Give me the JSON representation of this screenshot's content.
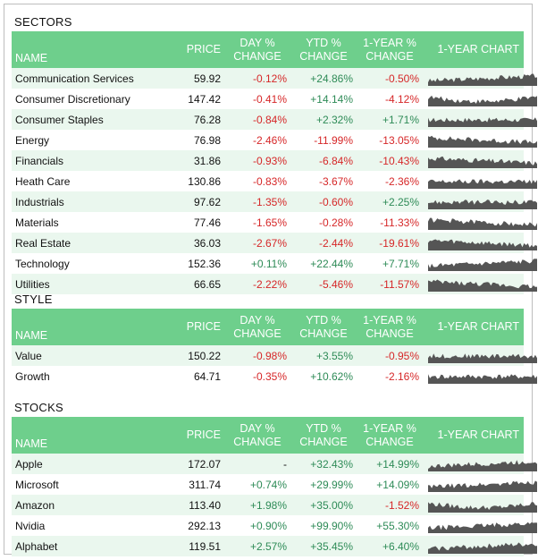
{
  "headers": {
    "name": "NAME",
    "price": "PRICE",
    "day_l1": "DAY %",
    "day_l2": "CHANGE",
    "ytd_l1": "YTD %",
    "ytd_l2": "CHANGE",
    "yr_l1": "1-YEAR %",
    "yr_l2": "CHANGE",
    "chart": "1-YEAR CHART"
  },
  "colors": {
    "header_bg": "#6ecf8c",
    "positive": "#2e8b57",
    "negative": "#d62728",
    "sparkline": "#555555"
  },
  "sections": [
    {
      "title": "SECTORS",
      "rows": [
        {
          "name": "Communication Services",
          "price": "59.92",
          "day": "-0.12%",
          "ytd": "+24.86%",
          "yr": "-0.50%",
          "spark_trend": "up"
        },
        {
          "name": "Consumer Discretionary",
          "price": "147.42",
          "day": "-0.41%",
          "ytd": "+14.14%",
          "yr": "-4.12%",
          "spark_trend": "down-up"
        },
        {
          "name": "Consumer Staples",
          "price": "76.28",
          "day": "-0.84%",
          "ytd": "+2.32%",
          "yr": "+1.71%",
          "spark_trend": "flat"
        },
        {
          "name": "Energy",
          "price": "76.98",
          "day": "-2.46%",
          "ytd": "-11.99%",
          "yr": "-13.05%",
          "spark_trend": "down"
        },
        {
          "name": "Financials",
          "price": "31.86",
          "day": "-0.93%",
          "ytd": "-6.84%",
          "yr": "-10.43%",
          "spark_trend": "down"
        },
        {
          "name": "Heath Care",
          "price": "130.86",
          "day": "-0.83%",
          "ytd": "-3.67%",
          "yr": "-2.36%",
          "spark_trend": "flat"
        },
        {
          "name": "Industrials",
          "price": "97.62",
          "day": "-1.35%",
          "ytd": "-0.60%",
          "yr": "+2.25%",
          "spark_trend": "flat"
        },
        {
          "name": "Materials",
          "price": "77.46",
          "day": "-1.65%",
          "ytd": "-0.28%",
          "yr": "-11.33%",
          "spark_trend": "down"
        },
        {
          "name": "Real Estate",
          "price": "36.03",
          "day": "-2.67%",
          "ytd": "-2.44%",
          "yr": "-19.61%",
          "spark_trend": "down"
        },
        {
          "name": "Technology",
          "price": "152.36",
          "day": "+0.11%",
          "ytd": "+22.44%",
          "yr": "+7.71%",
          "spark_trend": "up"
        },
        {
          "name": "Utilities",
          "price": "66.65",
          "day": "-2.22%",
          "ytd": "-5.46%",
          "yr": "-11.57%",
          "spark_trend": "down"
        }
      ]
    },
    {
      "title": "STYLE",
      "rows": [
        {
          "name": "Value",
          "price": "150.22",
          "day": "-0.98%",
          "ytd": "+3.55%",
          "yr": "-0.95%",
          "spark_trend": "flat"
        },
        {
          "name": "Growth",
          "price": "64.71",
          "day": "-0.35%",
          "ytd": "+10.62%",
          "yr": "-2.16%",
          "spark_trend": "flat"
        }
      ]
    },
    {
      "title": "STOCKS",
      "rows": [
        {
          "name": "Apple",
          "price": "172.07",
          "day": "-",
          "ytd": "+32.43%",
          "yr": "+14.99%",
          "spark_trend": "up"
        },
        {
          "name": "Microsoft",
          "price": "311.74",
          "day": "+0.74%",
          "ytd": "+29.99%",
          "yr": "+14.09%",
          "spark_trend": "up"
        },
        {
          "name": "Amazon",
          "price": "113.40",
          "day": "+1.98%",
          "ytd": "+35.00%",
          "yr": "-1.52%",
          "spark_trend": "down-up"
        },
        {
          "name": "Nvidia",
          "price": "292.13",
          "day": "+0.90%",
          "ytd": "+99.90%",
          "yr": "+55.30%",
          "spark_trend": "up"
        },
        {
          "name": "Alphabet",
          "price": "119.51",
          "day": "+2.57%",
          "ytd": "+35.45%",
          "yr": "+6.40%",
          "spark_trend": "up"
        }
      ]
    }
  ]
}
